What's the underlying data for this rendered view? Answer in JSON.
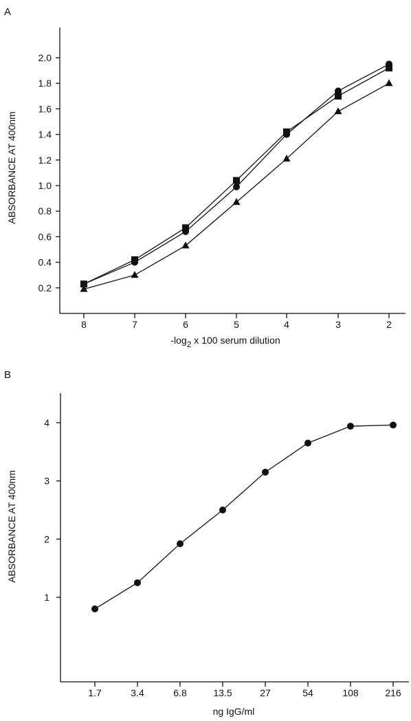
{
  "chart_data": [
    {
      "panel_label": "A",
      "type": "line",
      "xlabel": "-log",
      "xlabel_sub": "2",
      "xlabel_rest": " x 100 serum dilution",
      "ylabel": "ABSORBANCE AT 400nm",
      "x_ticks": [
        "8",
        "7",
        "6",
        "5",
        "4",
        "3",
        "2"
      ],
      "x_values": [
        8,
        7,
        6,
        5,
        4,
        3,
        2
      ],
      "x_reversed": true,
      "y_ticks": [
        "0.2",
        "0.4",
        "0.6",
        "0.8",
        "1.0",
        "1.2",
        "1.4",
        "1.6",
        "1.8",
        "2.0"
      ],
      "ylim": [
        0.0,
        2.15
      ],
      "grid": false,
      "series": [
        {
          "marker": "circle",
          "values": [
            0.23,
            0.4,
            0.64,
            0.99,
            1.4,
            1.74,
            1.95
          ]
        },
        {
          "marker": "square",
          "values": [
            0.23,
            0.42,
            0.67,
            1.04,
            1.42,
            1.7,
            1.92
          ]
        },
        {
          "marker": "triangle",
          "values": [
            0.19,
            0.3,
            0.53,
            0.87,
            1.21,
            1.58,
            1.8
          ]
        }
      ]
    },
    {
      "panel_label": "B",
      "type": "line",
      "xlabel": "ng IgG/ml",
      "ylabel": "ABSORBANCE AT 400nm",
      "x_ticks": [
        "1.7",
        "3.4",
        "6.8",
        "13.5",
        "27",
        "54",
        "108",
        "216"
      ],
      "y_ticks": [
        "1",
        "2",
        "3",
        "4"
      ],
      "ylim": [
        0.0,
        4.6
      ],
      "grid": false,
      "series": [
        {
          "marker": "circle",
          "values": [
            0.8,
            1.25,
            1.92,
            2.5,
            3.15,
            3.65,
            3.94,
            3.96
          ]
        }
      ]
    }
  ]
}
